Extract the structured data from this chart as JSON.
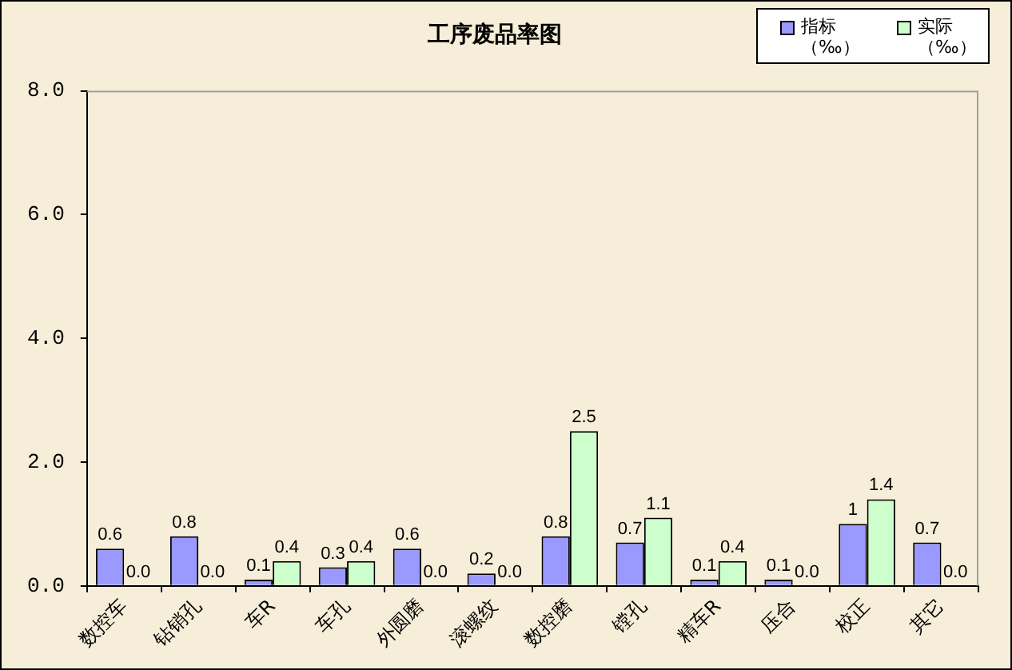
{
  "chart_data": {
    "type": "bar",
    "title": "工序废品率图",
    "categories": [
      "数控车",
      "钻销孔",
      "车R",
      "车孔",
      "外圆磨",
      "滚螺纹",
      "数控磨",
      "镗孔",
      "精车R",
      "压合",
      "校正",
      "其它"
    ],
    "series": [
      {
        "name": "指标（‰）",
        "color": "#9999ff",
        "values": [
          0.6,
          0.8,
          0.1,
          0.3,
          0.6,
          0.2,
          0.8,
          0.7,
          0.1,
          0.1,
          1,
          0.7
        ],
        "value_labels": [
          "0.6",
          "0.8",
          "0.1",
          "0.3",
          "0.6",
          "0.2",
          "0.8",
          "0.7",
          "0.1",
          "0.1",
          "1",
          "0.7"
        ]
      },
      {
        "name": "实际（‰）",
        "color": "#ccffcc",
        "values": [
          0,
          0,
          0.4,
          0.4,
          0,
          0,
          2.5,
          1.1,
          0.4,
          0,
          1.4,
          0
        ],
        "value_labels": [
          "0.0",
          "0.0",
          "0.4",
          "0.4",
          "0.0",
          "0.0",
          "2.5",
          "1.1",
          "0.4",
          "0.0",
          "1.4",
          "0.0"
        ]
      }
    ],
    "ylim": [
      0,
      8
    ],
    "yticks": [
      {
        "value": 0,
        "label": "0.0"
      },
      {
        "value": 2,
        "label": "2.0"
      },
      {
        "value": 4,
        "label": "4.0"
      },
      {
        "value": 6,
        "label": "6.0"
      },
      {
        "value": 8,
        "label": "8.0"
      }
    ],
    "grid": false,
    "legend": "top right"
  }
}
